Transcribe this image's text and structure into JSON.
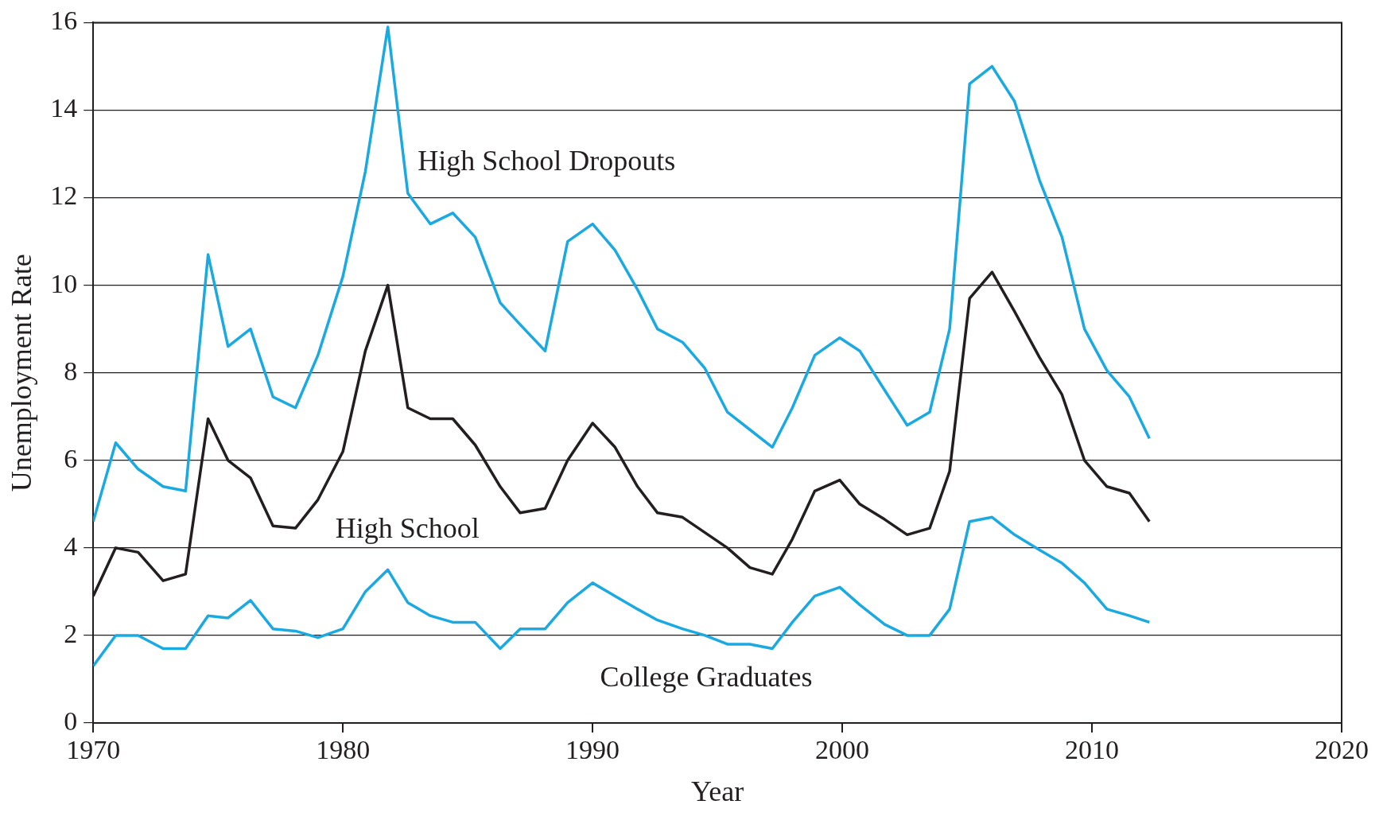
{
  "chart_data": {
    "type": "line",
    "xlabel": "Year",
    "ylabel": "Unemployment Rate",
    "x": [
      1970.0,
      1970.9,
      1971.8,
      1972.8,
      1973.7,
      1974.6,
      1975.4,
      1976.3,
      1977.2,
      1978.1,
      1979.0,
      1980.0,
      1980.9,
      1981.8,
      1982.6,
      1983.5,
      1984.4,
      1985.3,
      1986.3,
      1987.1,
      1988.1,
      1989.0,
      1990.0,
      1990.9,
      1991.8,
      1992.6,
      1993.6,
      1994.5,
      1995.4,
      1996.3,
      1997.2,
      1998.0,
      1998.9,
      1999.9,
      2000.7,
      2001.7,
      2002.6,
      2003.5,
      2004.3,
      2005.1,
      2006.0,
      2006.9,
      2007.9,
      2008.8,
      2009.7,
      2010.6,
      2011.5,
      2012.3
    ],
    "series": [
      {
        "name": "High School Dropouts",
        "color": "#1ba9e1",
        "values": [
          4.6,
          6.4,
          5.8,
          5.4,
          5.3,
          10.7,
          8.6,
          9.0,
          7.45,
          7.2,
          8.4,
          10.2,
          12.6,
          15.9,
          12.1,
          11.4,
          11.65,
          11.1,
          9.6,
          9.1,
          8.5,
          11.0,
          11.4,
          10.8,
          9.9,
          9.0,
          8.7,
          8.1,
          7.1,
          6.7,
          6.3,
          7.2,
          8.4,
          8.8,
          8.5,
          7.6,
          6.8,
          7.1,
          9.0,
          14.6,
          15.0,
          14.2,
          12.4,
          11.1,
          9.0,
          8.05,
          7.45,
          6.5
        ]
      },
      {
        "name": "High School",
        "color": "#231f20",
        "values": [
          2.9,
          4.0,
          3.9,
          3.25,
          3.4,
          6.95,
          6.0,
          5.6,
          4.5,
          4.45,
          5.1,
          6.2,
          8.5,
          10.0,
          7.2,
          6.95,
          6.95,
          6.35,
          5.4,
          4.8,
          4.9,
          6.0,
          6.85,
          6.3,
          5.4,
          4.8,
          4.7,
          4.35,
          4.0,
          3.55,
          3.4,
          4.2,
          5.3,
          5.55,
          5.0,
          4.65,
          4.3,
          4.45,
          5.75,
          9.7,
          10.3,
          9.4,
          8.35,
          7.5,
          6.0,
          5.4,
          5.25,
          4.6
        ]
      },
      {
        "name": "College Graduates",
        "color": "#1ba9e1",
        "values": [
          1.3,
          2.0,
          2.0,
          1.7,
          1.7,
          2.45,
          2.4,
          2.8,
          2.15,
          2.1,
          1.95,
          2.15,
          3.0,
          3.5,
          2.75,
          2.45,
          2.3,
          2.3,
          1.7,
          2.15,
          2.15,
          2.75,
          3.2,
          2.9,
          2.6,
          2.35,
          2.15,
          2.0,
          1.8,
          1.8,
          1.7,
          2.3,
          2.9,
          3.1,
          2.7,
          2.25,
          2.0,
          2.0,
          2.6,
          4.6,
          4.7,
          4.3,
          3.95,
          3.65,
          3.2,
          2.6,
          2.45,
          2.3
        ]
      }
    ],
    "xlim": [
      1970,
      2020
    ],
    "xticks": [
      1970,
      1980,
      1990,
      2000,
      2010,
      2020
    ],
    "ylim": [
      0,
      16
    ],
    "yticks": [
      0,
      2,
      4,
      6,
      8,
      10,
      12,
      14,
      16
    ],
    "grid": "y",
    "legend": false,
    "marker": "none",
    "line_style": "solid"
  }
}
